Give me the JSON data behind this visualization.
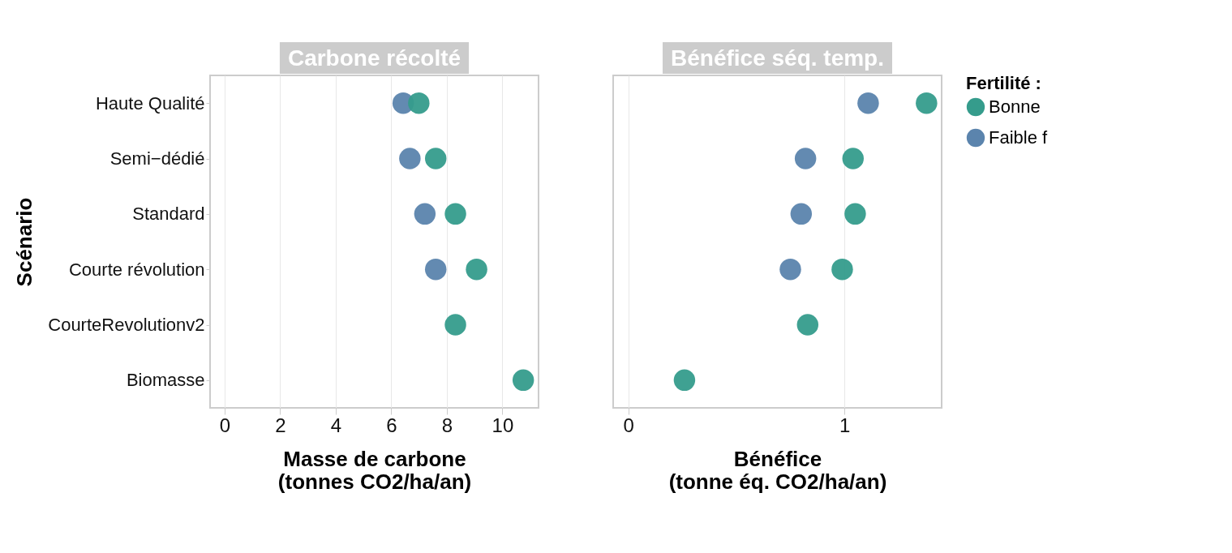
{
  "chart_data": [
    {
      "type": "scatter",
      "title": "Carbone récolté",
      "xlabel": "Masse de carbone\n(tonnes CO2/ha/an)",
      "ylabel": "Scénario",
      "orientation": "horizontal",
      "categories": [
        "Haute Qualité",
        "Semi−dédié",
        "Standard",
        "Courte révolution",
        "CourteRevolutionv2",
        "Biomasse"
      ],
      "series": [
        {
          "color": "#359c8c",
          "values": [
            6.99,
            7.6,
            8.31,
            9.07,
            8.31,
            10.75
          ]
        },
        {
          "color": "#5b84ad",
          "values": [
            6.43,
            6.67,
            7.21,
            7.6,
            null,
            null
          ]
        }
      ],
      "xlim": [
        -0.52,
        11.3
      ],
      "xticks": [
        0,
        2,
        4,
        6,
        8,
        10
      ],
      "grid": true,
      "marker": "circle"
    },
    {
      "type": "scatter",
      "title": "Bénéfice séq. temp.",
      "xlabel": "Bénéfice\n(tonne éq. CO2/ha/an)",
      "orientation": "horizontal",
      "tick_labels": "x",
      "categories": [
        null,
        null,
        null,
        null,
        null,
        null
      ],
      "series": [
        {
          "name": "Bonne",
          "color": "#359c8c",
          "values": [
            1.38,
            1.04,
            1.05,
            0.99,
            0.83,
            0.26
          ]
        },
        {
          "name": "Faible f",
          "color": "#5b84ad",
          "values": [
            1.11,
            0.82,
            0.8,
            0.75,
            null,
            null
          ]
        }
      ],
      "xlim": [
        -0.07,
        1.45
      ],
      "xticks": [
        0,
        1
      ],
      "grid": true,
      "marker": "circle",
      "legend": "right",
      "legend_title": "Fertilité :"
    }
  ]
}
